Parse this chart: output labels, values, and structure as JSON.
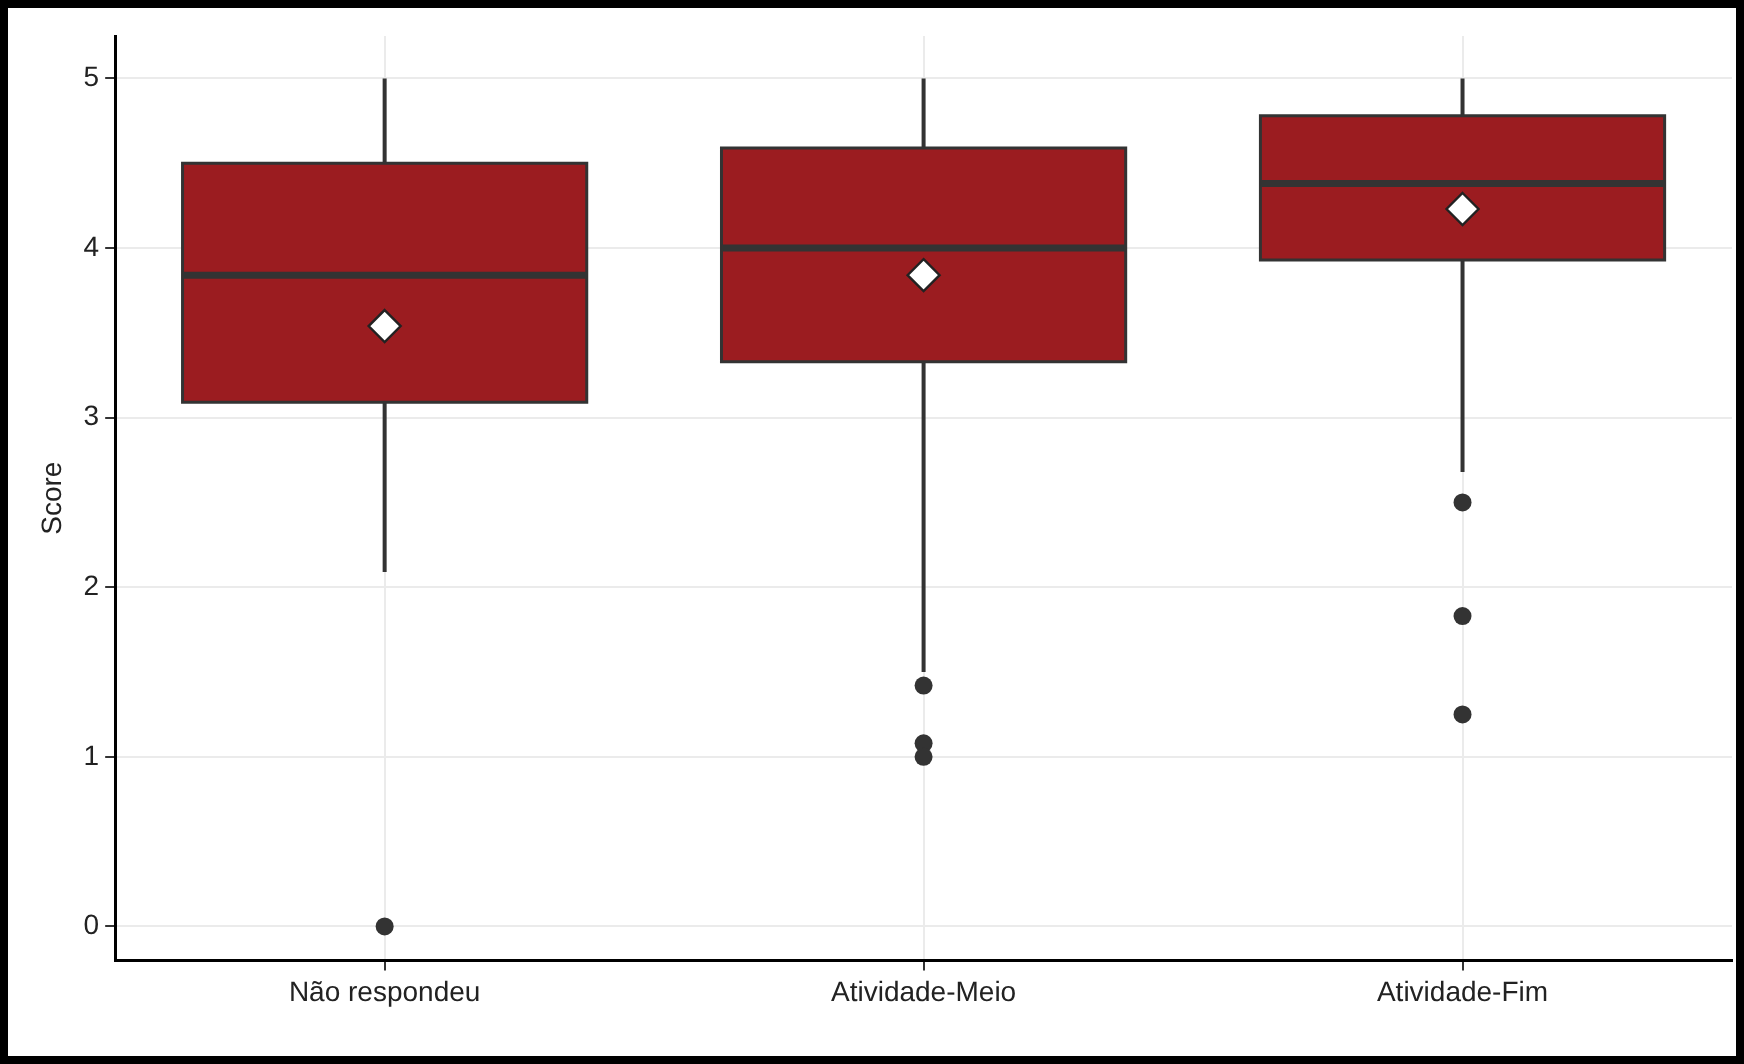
{
  "chart_data": {
    "type": "box",
    "ylabel": "Score",
    "categories": [
      "Não respondeu",
      "Atividade-Meio",
      "Atividade-Fim"
    ],
    "color": "#9b1c20",
    "ylim": [
      -0.2,
      5.25
    ],
    "yticks": [
      0,
      1,
      2,
      3,
      4,
      5
    ],
    "grid": true,
    "legend": false,
    "boxes": [
      {
        "low": 2.09,
        "q1": 3.09,
        "median": 3.84,
        "q3": 4.5,
        "high": 5,
        "mean": 3.54,
        "outliers": [
          0
        ]
      },
      {
        "low": 1.5,
        "q1": 3.33,
        "median": 4.0,
        "q3": 4.59,
        "high": 5,
        "mean": 3.84,
        "outliers": [
          1.42,
          1.08,
          1.0
        ]
      },
      {
        "low": 2.68,
        "q1": 3.93,
        "median": 4.38,
        "q3": 4.78,
        "high": 5,
        "mean": 4.23,
        "outliers": [
          2.5,
          1.83,
          1.25
        ]
      }
    ]
  }
}
